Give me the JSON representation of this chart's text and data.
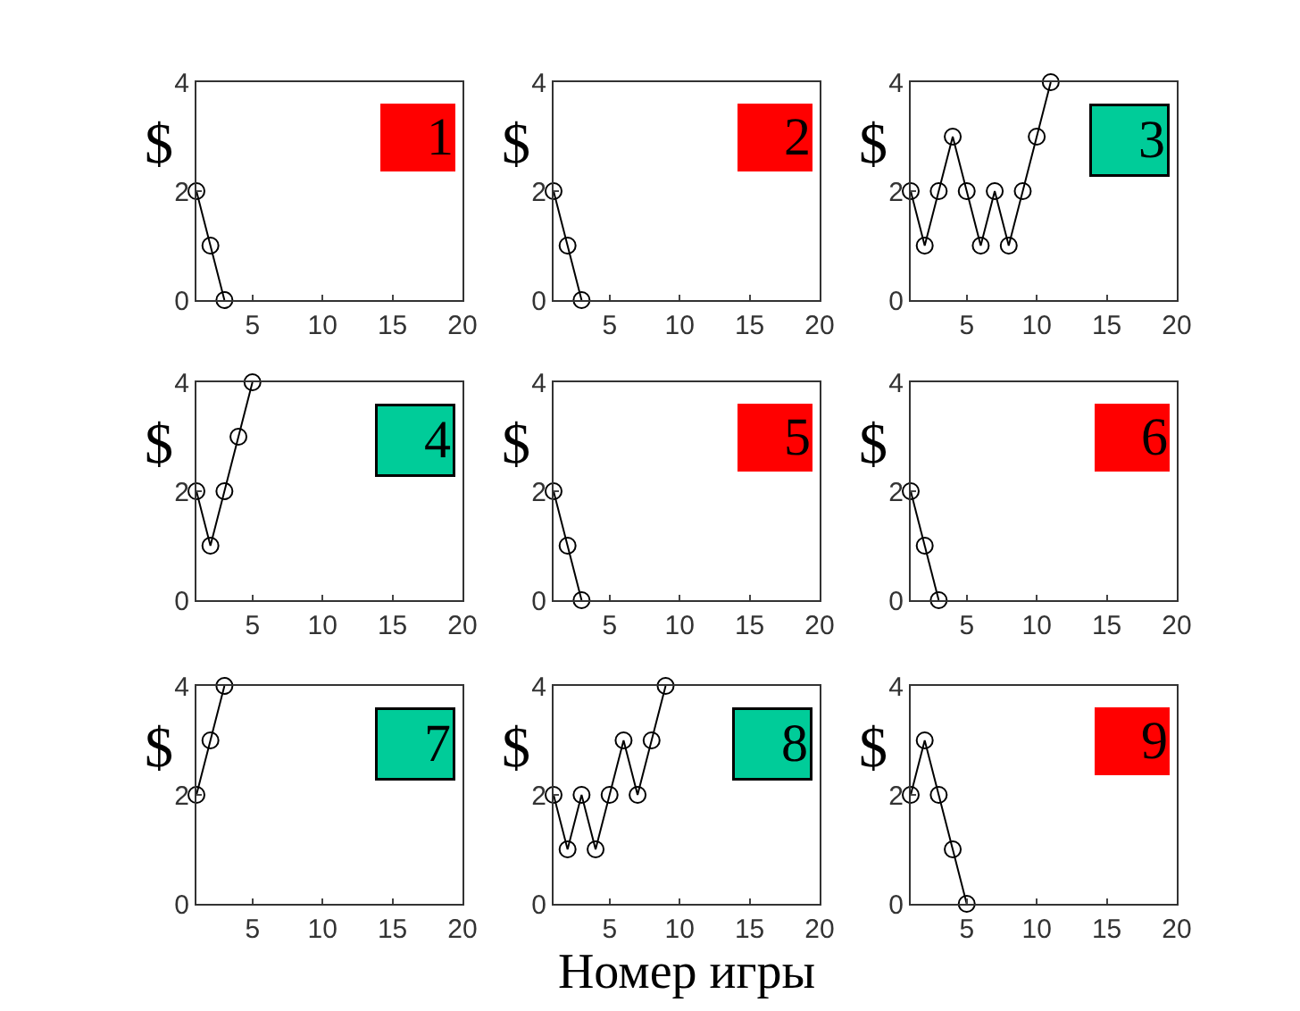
{
  "chart_data": [
    {
      "type": "line",
      "ylabel": "$",
      "annotations": [
        "1"
      ],
      "x": [
        1,
        2,
        3
      ],
      "values": [
        2,
        1,
        0
      ],
      "color": "#000000",
      "xlim": [
        1,
        20
      ],
      "ylim": [
        0,
        4
      ],
      "xticks": [
        5,
        10,
        15,
        20
      ],
      "yticks": [
        0,
        2,
        4
      ],
      "marker": "circle",
      "line_style": "solid",
      "grid": false,
      "legend": false
    },
    {
      "type": "line",
      "ylabel": "$",
      "annotations": [
        "2"
      ],
      "x": [
        1,
        2,
        3
      ],
      "values": [
        2,
        1,
        0
      ],
      "color": "#000000",
      "xlim": [
        1,
        20
      ],
      "ylim": [
        0,
        4
      ],
      "xticks": [
        5,
        10,
        15,
        20
      ],
      "yticks": [
        0,
        2,
        4
      ],
      "marker": "circle",
      "line_style": "solid",
      "grid": false,
      "legend": false
    },
    {
      "type": "line",
      "ylabel": "$",
      "annotations": [
        "3"
      ],
      "x": [
        1,
        2,
        3,
        4,
        5,
        6,
        7,
        8,
        9,
        10,
        11
      ],
      "values": [
        2,
        1,
        2,
        3,
        2,
        1,
        2,
        1,
        2,
        3,
        4
      ],
      "color": "#000000",
      "xlim": [
        1,
        20
      ],
      "ylim": [
        0,
        4
      ],
      "xticks": [
        5,
        10,
        15,
        20
      ],
      "yticks": [
        0,
        2,
        4
      ],
      "marker": "circle",
      "line_style": "solid",
      "grid": false,
      "legend": false
    },
    {
      "type": "line",
      "ylabel": "$",
      "annotations": [
        "4"
      ],
      "x": [
        1,
        2,
        3,
        4,
        5
      ],
      "values": [
        2,
        1,
        2,
        3,
        4
      ],
      "color": "#000000",
      "xlim": [
        1,
        20
      ],
      "ylim": [
        0,
        4
      ],
      "xticks": [
        5,
        10,
        15,
        20
      ],
      "yticks": [
        0,
        2,
        4
      ],
      "marker": "circle",
      "line_style": "solid",
      "grid": false,
      "legend": false
    },
    {
      "type": "line",
      "ylabel": "$",
      "annotations": [
        "5"
      ],
      "x": [
        1,
        2,
        3
      ],
      "values": [
        2,
        1,
        0
      ],
      "color": "#000000",
      "xlim": [
        1,
        20
      ],
      "ylim": [
        0,
        4
      ],
      "xticks": [
        5,
        10,
        15,
        20
      ],
      "yticks": [
        0,
        2,
        4
      ],
      "marker": "circle",
      "line_style": "solid",
      "grid": false,
      "legend": false
    },
    {
      "type": "line",
      "ylabel": "$",
      "annotations": [
        "6"
      ],
      "x": [
        1,
        2,
        3
      ],
      "values": [
        2,
        1,
        0
      ],
      "color": "#000000",
      "xlim": [
        1,
        20
      ],
      "ylim": [
        0,
        4
      ],
      "xticks": [
        5,
        10,
        15,
        20
      ],
      "yticks": [
        0,
        2,
        4
      ],
      "marker": "circle",
      "line_style": "solid",
      "grid": false,
      "legend": false
    },
    {
      "type": "line",
      "ylabel": "$",
      "annotations": [
        "7"
      ],
      "x": [
        1,
        2,
        3
      ],
      "values": [
        2,
        3,
        4
      ],
      "color": "#000000",
      "xlim": [
        1,
        20
      ],
      "ylim": [
        0,
        4
      ],
      "xticks": [
        5,
        10,
        15,
        20
      ],
      "yticks": [
        0,
        2,
        4
      ],
      "marker": "circle",
      "line_style": "solid",
      "grid": false,
      "legend": false
    },
    {
      "type": "line",
      "ylabel": "$",
      "xlabel": "Номер игры",
      "annotations": [
        "8"
      ],
      "x": [
        1,
        2,
        3,
        4,
        5,
        6,
        7,
        8,
        9
      ],
      "values": [
        2,
        1,
        2,
        1,
        2,
        3,
        2,
        3,
        4
      ],
      "color": "#000000",
      "xlim": [
        1,
        20
      ],
      "ylim": [
        0,
        4
      ],
      "xticks": [
        5,
        10,
        15,
        20
      ],
      "yticks": [
        0,
        2,
        4
      ],
      "marker": "circle",
      "line_style": "solid",
      "grid": false,
      "legend": false
    },
    {
      "type": "line",
      "ylabel": "$",
      "annotations": [
        "9"
      ],
      "x": [
        1,
        2,
        3,
        4,
        5
      ],
      "values": [
        2,
        3,
        2,
        1,
        0
      ],
      "color": "#000000",
      "xlim": [
        1,
        20
      ],
      "ylim": [
        0,
        4
      ],
      "xticks": [
        5,
        10,
        15,
        20
      ],
      "yticks": [
        0,
        2,
        4
      ],
      "marker": "circle",
      "line_style": "solid",
      "grid": false,
      "legend": false
    }
  ]
}
